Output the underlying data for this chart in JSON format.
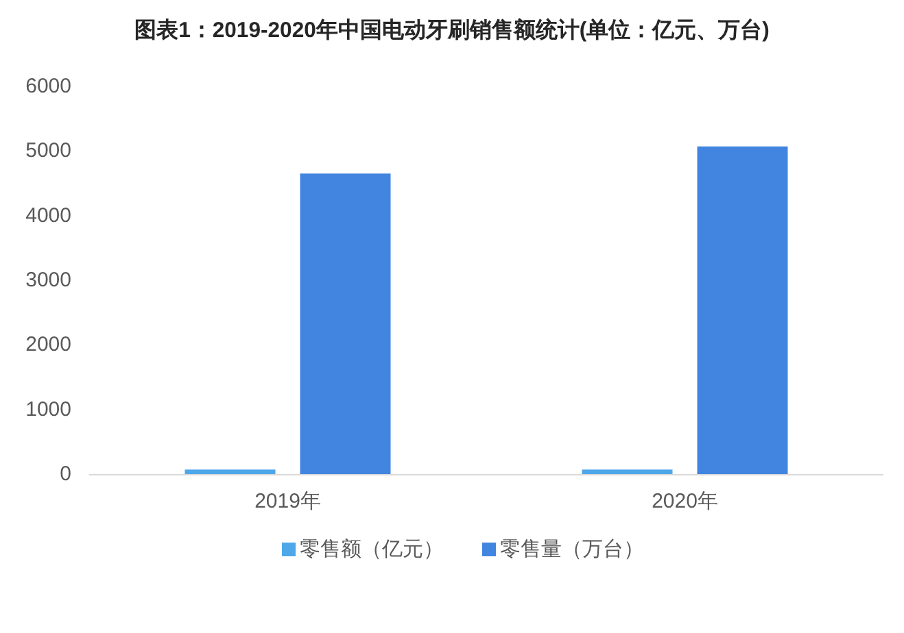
{
  "chart_data": {
    "type": "bar",
    "title": "图表1：2019-2020年中国电动牙刷销售额统计(单位：亿元、万台)",
    "categories": [
      "2019年",
      "2020年"
    ],
    "series": [
      {
        "name": "零售额（亿元）",
        "color": "#4ea7e9",
        "values": [
          70,
          70
        ]
      },
      {
        "name": "零售量（万台）",
        "color": "#4285e0",
        "values": [
          4650,
          5070
        ]
      }
    ],
    "ylim": [
      0,
      6000
    ],
    "yticks": [
      0,
      1000,
      2000,
      3000,
      4000,
      5000,
      6000
    ],
    "legend": "bottom"
  }
}
